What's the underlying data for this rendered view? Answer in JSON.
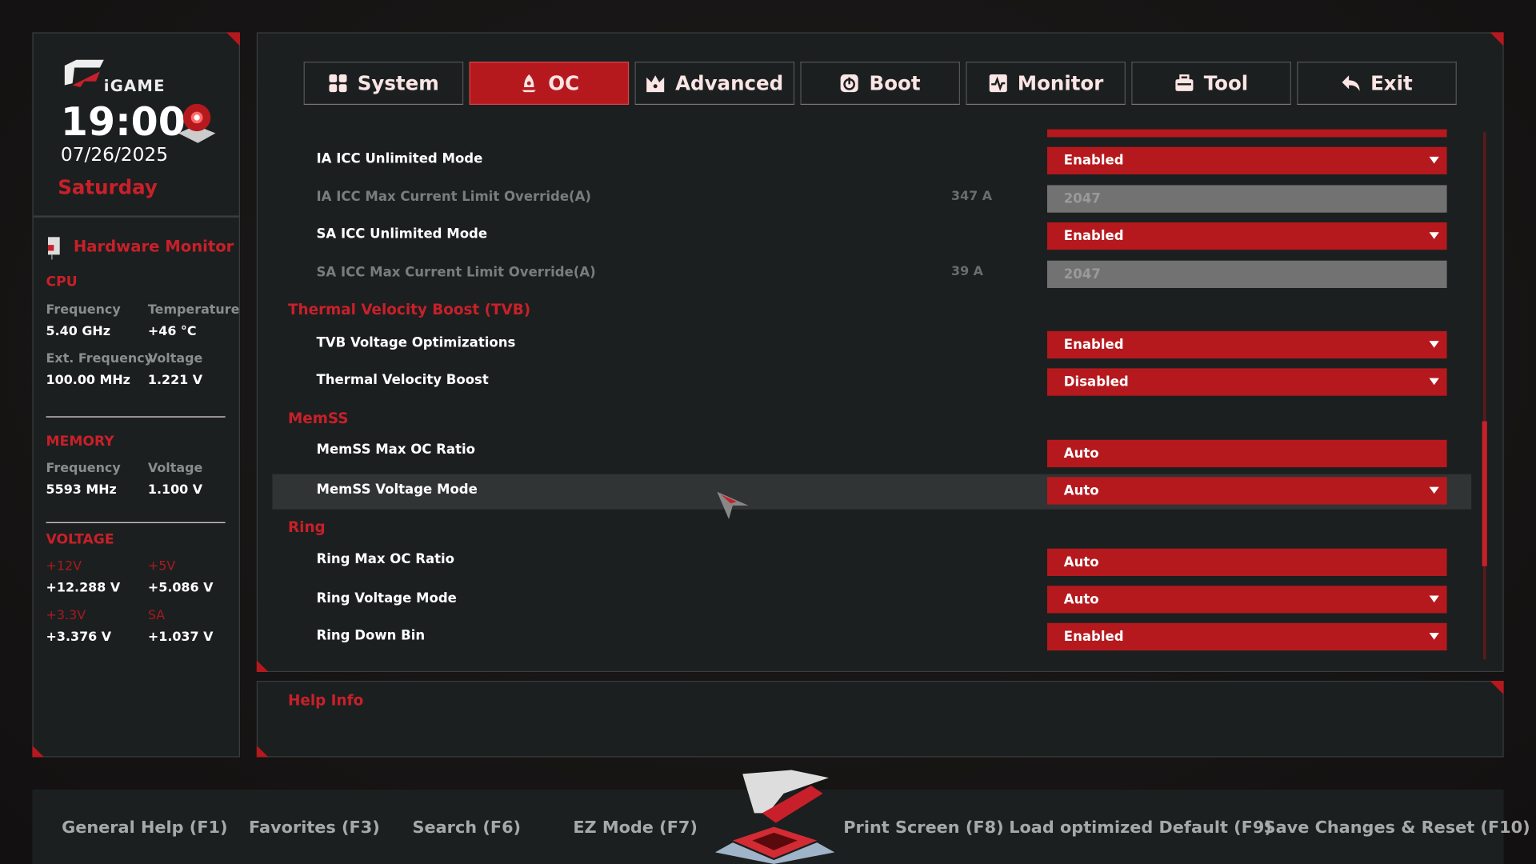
{
  "colors": {
    "accent": "#b5191e",
    "panel": "#1c1f1f",
    "disabled_field": "#727272"
  },
  "brand": {
    "logo_text": "iGAME"
  },
  "clock": {
    "time": "19:00",
    "date": "07/26/2025",
    "day": "Saturday"
  },
  "hardware_monitor": {
    "title": "Hardware Monitor",
    "cpu": {
      "title": "CPU",
      "frequency_label": "Frequency",
      "frequency": "5.40 GHz",
      "temperature_label": "Temperature",
      "temperature": "+46 °C",
      "ext_frequency_label": "Ext. Frequency",
      "ext_frequency": "100.00 MHz",
      "voltage_label": "Voltage",
      "voltage": "1.221 V"
    },
    "memory": {
      "title": "MEMORY",
      "frequency_label": "Frequency",
      "frequency": "5593 MHz",
      "voltage_label": "Voltage",
      "voltage": "1.100 V"
    },
    "voltage": {
      "title": "VOLTAGE",
      "v12_label": "+12V",
      "v12": "+12.288 V",
      "v5_label": "+5V",
      "v5": "+5.086 V",
      "v33_label": "+3.3V",
      "v33": "+3.376 V",
      "sa_label": "SA",
      "sa": "+1.037 V"
    }
  },
  "tabs": [
    {
      "label": "System",
      "icon": "grid-icon"
    },
    {
      "label": "OC",
      "icon": "rocket-icon",
      "active": true
    },
    {
      "label": "Advanced",
      "icon": "crown-icon"
    },
    {
      "label": "Boot",
      "icon": "power-icon"
    },
    {
      "label": "Monitor",
      "icon": "pulse-icon"
    },
    {
      "label": "Tool",
      "icon": "toolbox-icon"
    },
    {
      "label": "Exit",
      "icon": "back-arrow-icon"
    }
  ],
  "settings": {
    "ia_icc_unlimited": {
      "label": "IA ICC Unlimited Mode",
      "value": "Enabled"
    },
    "ia_icc_max": {
      "label": "IA ICC Max Current Limit Override(A)",
      "current": "347 A",
      "value": "2047"
    },
    "sa_icc_unlimited": {
      "label": "SA ICC Unlimited Mode",
      "value": "Enabled"
    },
    "sa_icc_max": {
      "label": "SA ICC Max Current Limit Override(A)",
      "current": "39 A",
      "value": "2047"
    },
    "tvb_group": "Thermal Velocity Boost (TVB)",
    "tvb_voltage": {
      "label": "TVB Voltage Optimizations",
      "value": "Enabled"
    },
    "tvb": {
      "label": "Thermal Velocity Boost",
      "value": "Disabled"
    },
    "memss_group": "MemSS",
    "memss_max_oc": {
      "label": "MemSS Max OC Ratio",
      "value": "Auto"
    },
    "memss_voltage_mode": {
      "label": "MemSS Voltage Mode",
      "value": "Auto"
    },
    "ring_group": "Ring",
    "ring_max_oc": {
      "label": "Ring Max OC Ratio",
      "value": "Auto"
    },
    "ring_voltage_mode": {
      "label": "Ring Voltage Mode",
      "value": "Auto"
    },
    "ring_down_bin": {
      "label": "Ring Down Bin",
      "value": "Enabled"
    }
  },
  "help": {
    "title": "Help Info"
  },
  "footer": {
    "general_help": "General Help (F1)",
    "favorites": "Favorites (F3)",
    "search": "Search (F6)",
    "ez_mode": "EZ Mode (F7)",
    "print_screen": "Print Screen (F8)",
    "load_default": "Load optimized Default (F9)",
    "save_reset": "Save Changes & Reset (F10)"
  }
}
